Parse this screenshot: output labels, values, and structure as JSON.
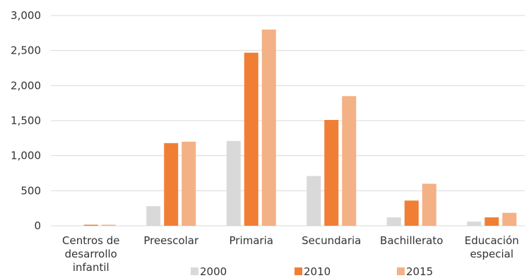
{
  "chart_data": {
    "type": "bar",
    "categories": [
      "Centros de desarrollo infantil",
      "Preescolar",
      "Primaria",
      "Secundaria",
      "Bachillerato",
      "Educación especial"
    ],
    "category_lines": [
      [
        "Centros de",
        "desarrollo",
        "infantil"
      ],
      [
        "Preescolar"
      ],
      [
        "Primaria"
      ],
      [
        "Secundaria"
      ],
      [
        "Bachillerato"
      ],
      [
        "Educación",
        "especial"
      ]
    ],
    "series": [
      {
        "name": "2000",
        "color": "#d9d9d9",
        "values": [
          0,
          280,
          1210,
          710,
          120,
          60
        ]
      },
      {
        "name": "2010",
        "color": "#f07f35",
        "values": [
          15,
          1180,
          2470,
          1510,
          360,
          120
        ]
      },
      {
        "name": "2015",
        "color": "#f4b185",
        "values": [
          15,
          1200,
          2800,
          1850,
          600,
          185
        ]
      }
    ],
    "ylim": [
      0,
      3000
    ],
    "yticks": [
      0,
      500,
      1000,
      1500,
      2000,
      2500,
      3000
    ],
    "ytick_labels": [
      "0",
      "500",
      "1,000",
      "1,500",
      "2,000",
      "2,500",
      "3,000"
    ],
    "grid": true,
    "legend": "bottom",
    "title": "",
    "xlabel": "",
    "ylabel": ""
  }
}
